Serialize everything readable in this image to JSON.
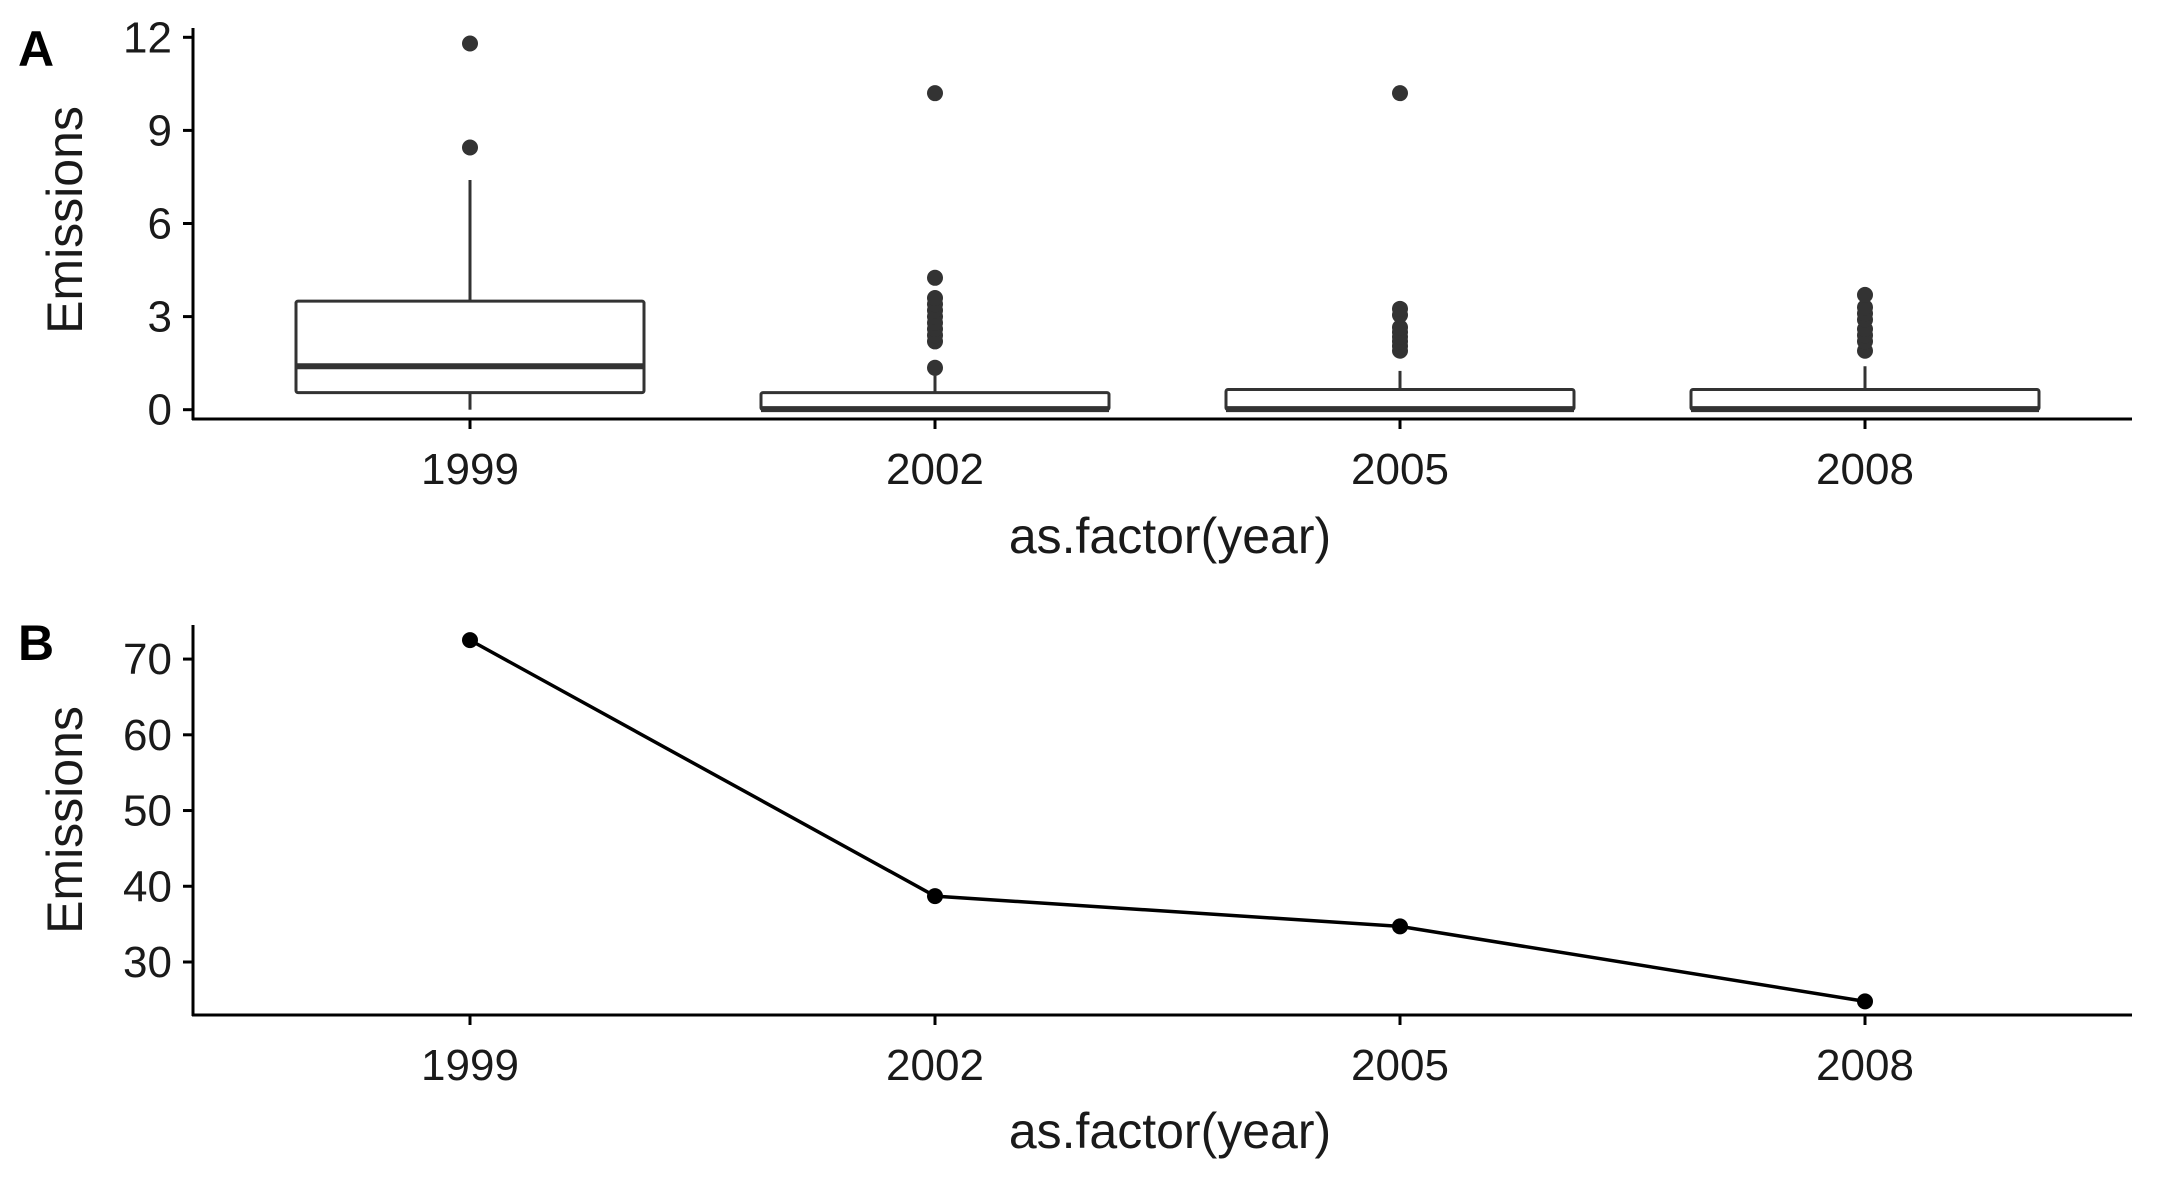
{
  "chart_data": [
    {
      "panel": "A",
      "type": "box",
      "xlabel": "as.factor(year)",
      "ylabel": "Emissions",
      "categories": [
        "1999",
        "2002",
        "2005",
        "2008"
      ],
      "ylim": [
        -0.3,
        12.3
      ],
      "yticks": [
        0,
        3,
        6,
        9,
        12
      ],
      "grid": false,
      "boxes": [
        {
          "category": "1999",
          "lower_whisker": 0,
          "q1": 0.55,
          "median": 1.4,
          "q3": 3.5,
          "upper_whisker": 7.4,
          "outliers": [
            8.45,
            11.8
          ]
        },
        {
          "category": "2002",
          "lower_whisker": 0,
          "q1": 0,
          "median": 0.02,
          "q3": 0.55,
          "upper_whisker": 1.1,
          "outliers": [
            1.35,
            2.2,
            2.4,
            2.6,
            2.8,
            3.0,
            3.2,
            3.4,
            3.6,
            4.25,
            10.2
          ]
        },
        {
          "category": "2005",
          "lower_whisker": 0,
          "q1": 0,
          "median": 0.02,
          "q3": 0.65,
          "upper_whisker": 1.25,
          "outliers": [
            1.9,
            2.05,
            2.2,
            2.35,
            2.5,
            2.65,
            3.05,
            3.25,
            10.2
          ]
        },
        {
          "category": "2008",
          "lower_whisker": 0,
          "q1": 0,
          "median": 0.02,
          "q3": 0.65,
          "upper_whisker": 1.4,
          "outliers": [
            1.9,
            2.2,
            2.4,
            2.6,
            2.9,
            3.1,
            3.3,
            3.7
          ]
        }
      ]
    },
    {
      "panel": "B",
      "type": "line",
      "xlabel": "as.factor(year)",
      "ylabel": "Emissions",
      "x": [
        "1999",
        "2002",
        "2005",
        "2008"
      ],
      "values": [
        72.5,
        38.7,
        34.7,
        24.8
      ],
      "ylim": [
        23,
        74.5
      ],
      "yticks": [
        30,
        40,
        50,
        60,
        70
      ],
      "grid": false
    }
  ]
}
